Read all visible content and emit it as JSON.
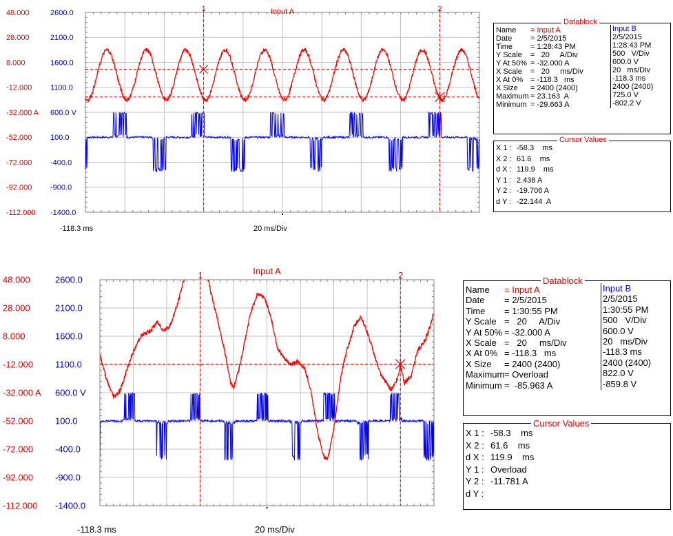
{
  "chart_data": [
    {
      "type": "line",
      "title": "Input A",
      "xlabel": "20 ms/Div",
      "x_start_label": "-118.3 ms",
      "x_range_ms": [
        -118.3,
        81.7
      ],
      "left_axis": {
        "unit": "A",
        "ticks": [
          "48.000",
          "28.000",
          "8.000",
          "-12.000",
          "-32.000 A",
          "-52.000",
          "-72.000",
          "-92.000",
          "-112.000"
        ],
        "range": [
          -112,
          48
        ]
      },
      "right_axis": {
        "unit": "V",
        "ticks": [
          "2600.0",
          "2100.0",
          "1600.0",
          "1100.0",
          "600.0 V",
          "100.0",
          "-400.0",
          "-900.0",
          "-1400.0"
        ],
        "range": [
          -1400,
          2600
        ]
      },
      "cursors": {
        "x1_label": "1",
        "x2_label": "2",
        "x1_ms": -58.3,
        "x2_ms": 61.6,
        "y1_A": 2.438,
        "y2_A": -19.706
      },
      "grid": true,
      "series": [
        {
          "name": "Input A",
          "color": "#ff0000",
          "axis": "left",
          "amplitude_A": 20,
          "offset_A": 0,
          "period_ms": 20,
          "phase_ms": 6,
          "noise_A": 3
        },
        {
          "name": "Input B",
          "color": "#0000ff",
          "axis": "right",
          "high_V": 600,
          "low_V": -600,
          "base_V": 100,
          "period_ms": 40,
          "pulse_ms": 7
        }
      ],
      "datablock": {
        "title": "Datablock",
        "rows": [
          {
            "label": "Name",
            "a": "= Input A",
            "b": "Input B"
          },
          {
            "label": "Date",
            "a": "= 2/5/2015",
            "b": "2/5/2015"
          },
          {
            "label": "Time",
            "a": "= 1:28:43 PM",
            "b": "1:28:43 PM"
          },
          {
            "label": "Y Scale",
            "a": "=   20     A/Div",
            "b": "500   V/Div"
          },
          {
            "label": "Y At 50%",
            "a": "= -32.000 A",
            "b": "600.0 V"
          },
          {
            "label": "X Scale",
            "a": "=   20     ms/Div",
            "b": "20   ms/Div"
          },
          {
            "label": "X At 0%",
            "a": "= -118.3   ms",
            "b": "-118.3 ms"
          },
          {
            "label": "X Size",
            "a": "= 2400 (2400)",
            "b": "2400 (2400)"
          },
          {
            "label": "Maximum",
            "a": "= 23.163  A",
            "b": "725.0 V"
          },
          {
            "label": "Minimum",
            "a": "= -29.663 A",
            "b": "-802.2 V"
          }
        ]
      },
      "cursor_values": {
        "title": "Cursor Values",
        "rows": [
          {
            "label": "X 1 :",
            "value": "-58.3    ms"
          },
          {
            "label": "X 2 :",
            "value": "61.6    ms"
          },
          {
            "label": "d X :",
            "value": "119.9    ms"
          },
          {
            "label": "Y 1 :",
            "value": "2.438 A"
          },
          {
            "label": "Y 2 :",
            "value": "-19.706 A"
          },
          {
            "label": "d Y :",
            "value": "-22.144  A"
          }
        ]
      }
    },
    {
      "type": "line",
      "title": "Input A",
      "xlabel": "20 ms/Div",
      "x_start_label": "-118.3 ms",
      "x_range_ms": [
        -118.3,
        81.7
      ],
      "left_axis": {
        "unit": "A",
        "ticks": [
          "48.000",
          "28.000",
          "8.000",
          "-12.000",
          "-32.000 A",
          "-52.000",
          "-72.000",
          "-92.000",
          "-112.000"
        ],
        "range": [
          -112,
          48
        ]
      },
      "right_axis": {
        "unit": "V",
        "ticks": [
          "2600.0",
          "2100.0",
          "1600.0",
          "1100.0",
          "600.0 V",
          "100.0",
          "-400.0",
          "-900.0",
          "-1400.0"
        ],
        "range": [
          -1400,
          2600
        ]
      },
      "cursors": {
        "x1_label": "1",
        "x2_label": "2",
        "x1_ms": -58.3,
        "x2_ms": 61.6,
        "y2_A": -11.781
      },
      "grid": true,
      "series": [
        {
          "name": "Input A",
          "color": "#ff0000",
          "axis": "left",
          "points_ms_A": [
            [
              -118.3,
              -5
            ],
            [
              -114,
              -24
            ],
            [
              -110,
              -35
            ],
            [
              -106,
              -30
            ],
            [
              -100,
              -8
            ],
            [
              -94,
              8
            ],
            [
              -88,
              12
            ],
            [
              -84,
              18
            ],
            [
              -80,
              12
            ],
            [
              -76,
              16
            ],
            [
              -72,
              30
            ],
            [
              -68,
              48
            ],
            [
              -64,
              60
            ],
            [
              -60,
              70
            ],
            [
              -58.3,
              75
            ],
            [
              -56,
              65
            ],
            [
              -52,
              40
            ],
            [
              -48,
              20
            ],
            [
              -44,
              0
            ],
            [
              -40,
              -25
            ],
            [
              -38,
              -28
            ],
            [
              -34,
              -10
            ],
            [
              -28,
              25
            ],
            [
              -24,
              38
            ],
            [
              -20,
              36
            ],
            [
              -16,
              22
            ],
            [
              -12,
              0
            ],
            [
              -8,
              -8
            ],
            [
              -4,
              -12
            ],
            [
              0,
              -10
            ],
            [
              4,
              -14
            ],
            [
              8,
              -30
            ],
            [
              12,
              -60
            ],
            [
              16,
              -78
            ],
            [
              18,
              -80
            ],
            [
              22,
              -55
            ],
            [
              26,
              -20
            ],
            [
              30,
              0
            ],
            [
              34,
              15
            ],
            [
              38,
              22
            ],
            [
              42,
              10
            ],
            [
              46,
              -5
            ],
            [
              50,
              -20
            ],
            [
              54,
              -26
            ],
            [
              56,
              -30
            ],
            [
              60,
              -22
            ],
            [
              61.6,
              -11.8
            ],
            [
              64,
              -25
            ],
            [
              68,
              -20
            ],
            [
              72,
              -2
            ],
            [
              76,
              4
            ],
            [
              78,
              10
            ],
            [
              80,
              18
            ],
            [
              81.7,
              25
            ]
          ],
          "noise_A": 3
        },
        {
          "name": "Input B",
          "color": "#0000ff",
          "axis": "right",
          "high_V": 600,
          "low_V": -600,
          "base_V": 100,
          "period_ms": 40,
          "pulse_ms": 7
        }
      ],
      "datablock": {
        "title": "Datablock",
        "rows": [
          {
            "label": "Name",
            "a": "= Input A",
            "b": "Input B"
          },
          {
            "label": "Date",
            "a": "= 2/5/2015",
            "b": "2/5/2015"
          },
          {
            "label": "Time",
            "a": "= 1:30:55 PM",
            "b": "1:30:55 PM"
          },
          {
            "label": "Y Scale",
            "a": "=   20     A/Div",
            "b": "500   V/Div"
          },
          {
            "label": "Y At 50%",
            "a": "= -32.000 A",
            "b": "600.0 V"
          },
          {
            "label": "X Scale",
            "a": "=   20     ms/Div",
            "b": "20   ms/Div"
          },
          {
            "label": "X At 0%",
            "a": "= -118.3   ms",
            "b": "-118.3 ms"
          },
          {
            "label": "X Size",
            "a": "= 2400 (2400)",
            "b": "2400 (2400)"
          },
          {
            "label": "Maximum",
            "a": "= Overload",
            "b": "822.0 V"
          },
          {
            "label": "Minimum",
            "a": "=  -85.963 A",
            "b": "-859.8 V"
          }
        ]
      },
      "cursor_values": {
        "title": "Cursor Values",
        "rows": [
          {
            "label": "X 1 :",
            "value": "-58.3    ms"
          },
          {
            "label": "X 2 :",
            "value": "61.6    ms"
          },
          {
            "label": "d X :",
            "value": "119.9    ms"
          },
          {
            "label": "Y 1 :",
            "value": "Overload"
          },
          {
            "label": "Y 2 :",
            "value": "-11.781 A"
          },
          {
            "label": "d Y :",
            "value": ""
          }
        ]
      }
    }
  ]
}
